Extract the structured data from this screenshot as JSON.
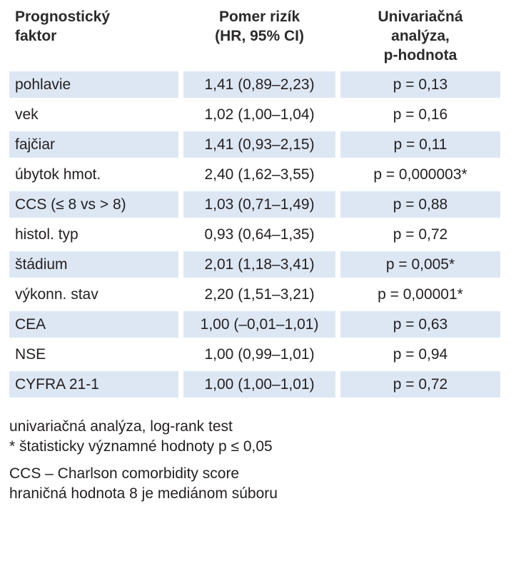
{
  "table": {
    "headers": [
      [
        "Prognostický",
        "faktor"
      ],
      [
        "Pomer rizík",
        "(HR, 95% CI)"
      ],
      [
        "Univariačná",
        "analýza,",
        "p-hodnota"
      ]
    ],
    "rows": [
      {
        "factor": "pohlavie",
        "hr": "1,41 (0,89–2,23)",
        "p": "p = 0,13"
      },
      {
        "factor": "vek",
        "hr": "1,02 (1,00–1,04)",
        "p": "p = 0,16"
      },
      {
        "factor": "fajčiar",
        "hr": "1,41 (0,93–2,15)",
        "p": "p = 0,11"
      },
      {
        "factor": "úbytok hmot.",
        "hr": "2,40 (1,62–3,55)",
        "p": "p = 0,000003*"
      },
      {
        "factor": "CCS (≤ 8 vs > 8)",
        "hr": "1,03 (0,71–1,49)",
        "p": "p = 0,88"
      },
      {
        "factor": "histol. typ",
        "hr": "0,93 (0,64–1,35)",
        "p": "p = 0,72"
      },
      {
        "factor": "štádium",
        "hr": "2,01 (1,18–3,41)",
        "p": "p = 0,005*"
      },
      {
        "factor": "výkonn. stav",
        "hr": "2,20 (1,51–3,21)",
        "p": "p = 0,00001*"
      },
      {
        "factor": "CEA",
        "hr": "1,00 (–0,01–1,01)",
        "p": "p = 0,63"
      },
      {
        "factor": "NSE",
        "hr": "1,00 (0,99–1,01)",
        "p": "p = 0,94"
      },
      {
        "factor": "CYFRA 21-1",
        "hr": "1,00 (1,00–1,01)",
        "p": "p = 0,72"
      }
    ]
  },
  "notes": [
    [
      "univariačná analýza, log-rank test",
      "* štatisticky významné hodnoty p ≤ 0,05"
    ],
    [
      "CCS – Charlson comorbidity score",
      "hraničná hodnota 8 je mediánom súboru"
    ]
  ],
  "colors": {
    "row_band": "#dde7f4",
    "text": "#231f20"
  }
}
